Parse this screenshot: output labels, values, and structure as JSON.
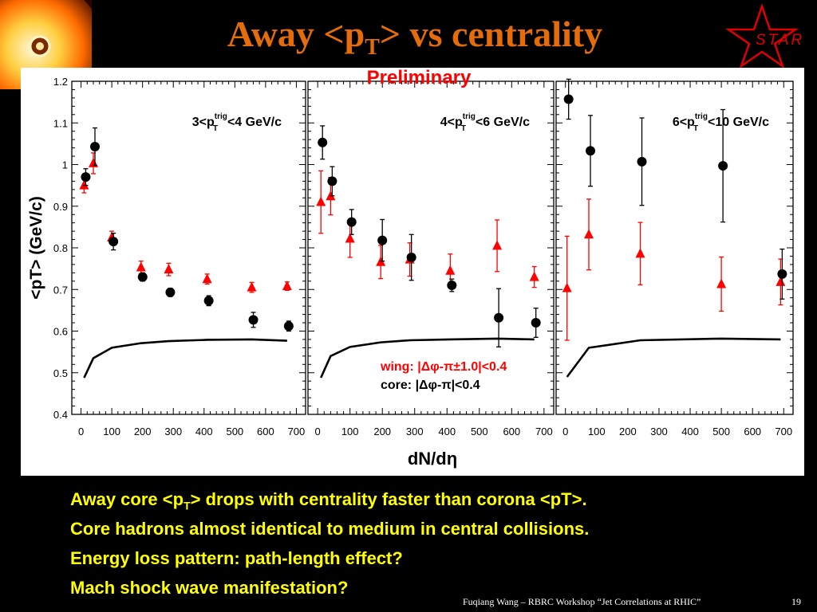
{
  "slide": {
    "title_prefix": "Away <p",
    "title_sub": "T",
    "title_suffix": "> vs centrality",
    "preliminary": "Preliminary",
    "logo_text": "STAR",
    "bullets": [
      {
        "pre": "Away core <p",
        "sub": "T",
        "post": "> drops with centrality faster than corona <pT>."
      },
      {
        "pre": "Core hadrons almost identical to medium in central collisions.",
        "sub": "",
        "post": ""
      },
      {
        "pre": "Energy loss pattern: path-length effect?",
        "sub": "",
        "post": ""
      },
      {
        "pre": "Mach shock wave manifestation?",
        "sub": "",
        "post": ""
      }
    ],
    "footer": "Fuqiang Wang – RBRC Workshop “Jet Correlations at RHIC”",
    "page_number": "19",
    "colors": {
      "title": "#e46c0a",
      "bullets": "#ffff00",
      "preliminary": "#ff0000",
      "wing": "#ff0000",
      "core": "#000000"
    }
  },
  "chart_data": {
    "type": "scatter",
    "ylabel": "<pT> (GeV/c)",
    "xlabel": "dN/dη",
    "ylim": [
      0.4,
      1.2
    ],
    "xlim": [
      -30,
      730
    ],
    "y_ticks": [
      "0.4",
      "0.5",
      "0.6",
      "0.7",
      "0.8",
      "0.9",
      "1",
      "1.1",
      "1.2"
    ],
    "x_ticks": [
      "0",
      "100",
      "200",
      "300",
      "400",
      "500",
      "600",
      "700"
    ],
    "legend": {
      "wing": "wing: |Δφ-π±1.0|<0.4",
      "core": "core: |Δφ-π|<0.4",
      "placement": "lower-right of middle panel"
    },
    "panels": [
      {
        "label_pre": "3<p",
        "label_sup": "trig",
        "label_sub": "T",
        "label_post": "<4 GeV/c",
        "core": {
          "x": [
            10,
            40,
            100,
            195,
            285,
            410,
            555,
            670
          ],
          "y": [
            0.97,
            1.043,
            0.815,
            0.73,
            0.693,
            0.673,
            0.627,
            0.612
          ],
          "err": [
            0.02,
            0.045,
            0.02,
            0.01,
            0.01,
            0.012,
            0.018,
            0.012
          ]
        },
        "wing": {
          "x": [
            10,
            40,
            100,
            195,
            285,
            410,
            555,
            670
          ],
          "y": [
            0.95,
            1.003,
            0.825,
            0.753,
            0.748,
            0.725,
            0.705,
            0.708
          ],
          "err": [
            0.018,
            0.025,
            0.015,
            0.015,
            0.015,
            0.012,
            0.012,
            0.01
          ]
        },
        "curve": {
          "x": [
            10,
            40,
            100,
            195,
            285,
            410,
            555,
            670
          ],
          "y": [
            0.488,
            0.535,
            0.56,
            0.571,
            0.576,
            0.579,
            0.58,
            0.577
          ]
        }
      },
      {
        "label_pre": "4<p",
        "label_sup": "trig",
        "label_sub": "T",
        "label_post": "<6 GeV/c",
        "core": {
          "x": [
            10,
            40,
            100,
            195,
            285,
            410,
            555,
            670
          ],
          "y": [
            1.053,
            0.96,
            0.862,
            0.818,
            0.777,
            0.71,
            0.632,
            0.62
          ],
          "err": [
            0.04,
            0.035,
            0.03,
            0.05,
            0.055,
            0.015,
            0.07,
            0.035
          ]
        },
        "wing": {
          "x": [
            10,
            40,
            100,
            195,
            285,
            410,
            555,
            670
          ],
          "y": [
            0.91,
            0.924,
            0.822,
            0.766,
            0.772,
            0.745,
            0.805,
            0.73
          ],
          "err": [
            0.075,
            0.045,
            0.045,
            0.04,
            0.04,
            0.04,
            0.062,
            0.025
          ]
        },
        "curve": {
          "x": [
            10,
            40,
            100,
            195,
            285,
            410,
            555,
            670
          ],
          "y": [
            0.488,
            0.54,
            0.562,
            0.573,
            0.578,
            0.58,
            0.582,
            0.58
          ]
        }
      },
      {
        "label_pre": "6<p",
        "label_sup": "trig",
        "label_sub": "T",
        "label_post": "<10 GeV/c",
        "core": {
          "x": [
            5,
            75,
            240,
            500,
            690
          ],
          "y": [
            1.157,
            1.033,
            1.007,
            0.997,
            0.737
          ],
          "err": [
            0.048,
            0.085,
            0.105,
            0.135,
            0.06
          ]
        },
        "wing": {
          "x": [
            5,
            75,
            240,
            500,
            690
          ],
          "y": [
            0.703,
            0.832,
            0.786,
            0.713,
            0.718
          ],
          "err": [
            0.125,
            0.085,
            0.075,
            0.065,
            0.055
          ]
        },
        "curve": {
          "x": [
            5,
            75,
            240,
            500,
            690
          ],
          "y": [
            0.49,
            0.56,
            0.578,
            0.582,
            0.58
          ]
        }
      }
    ]
  }
}
